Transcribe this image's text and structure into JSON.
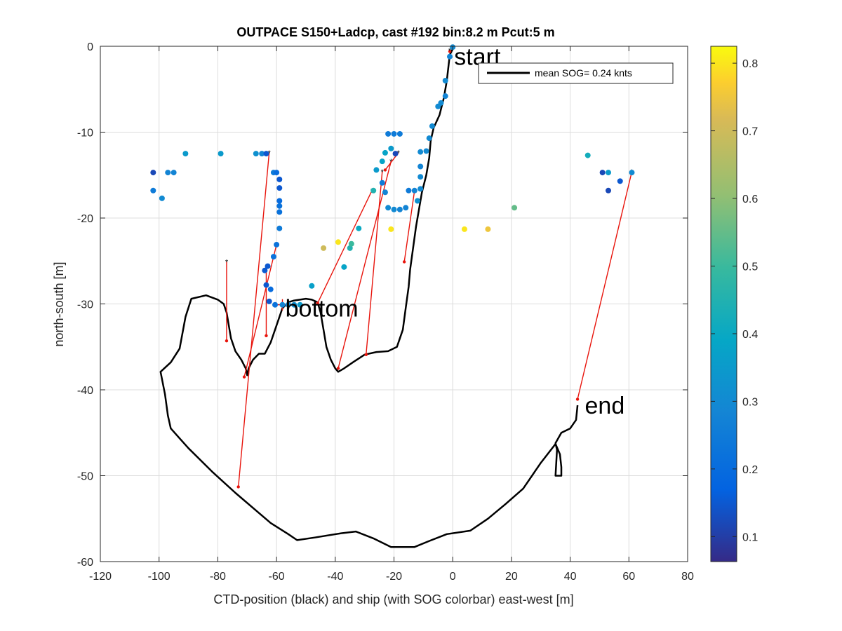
{
  "chart_data": {
    "type": "scatter",
    "title": "OUTPACE S150+Ladcp, cast #192 bin:8.2 m  Pcut:5 m",
    "xlabel": "CTD-position (black) and ship (with SOG colorbar) east-west [m]",
    "ylabel": "north-south [m]",
    "xlim": [
      -120,
      80
    ],
    "ylim": [
      -60,
      0
    ],
    "xticks": [
      "-120",
      "-100",
      "-80",
      "-60",
      "-40",
      "-20",
      "0",
      "20",
      "40",
      "60",
      "80"
    ],
    "yticks": [
      "0",
      "-10",
      "-20",
      "-30",
      "-40",
      "-50",
      "-60"
    ],
    "grid": true,
    "legend": {
      "label": "mean SOG=  0.24 knts",
      "placement": "top-right"
    },
    "colorbar": {
      "range": [
        0.063,
        0.825
      ],
      "ticks": [
        "0.1",
        "0.2",
        "0.3",
        "0.4",
        "0.5",
        "0.6",
        "0.7",
        "0.8"
      ],
      "colormap": "parula"
    },
    "annotations": [
      {
        "text": "start",
        "x": 0.5,
        "y": -1.2
      },
      {
        "text": "bottom",
        "x": -57,
        "y": -30.5
      },
      {
        "text": "end",
        "x": 45,
        "y": -41.8
      }
    ],
    "ctd_track": [
      [
        0,
        -0.3
      ],
      [
        -1,
        -1
      ],
      [
        -1.5,
        -2.5
      ],
      [
        -2,
        -4
      ],
      [
        -3,
        -6
      ],
      [
        -4.5,
        -8
      ],
      [
        -6.5,
        -9.5
      ],
      [
        -7.5,
        -11
      ],
      [
        -8,
        -13
      ],
      [
        -9,
        -15
      ],
      [
        -10.5,
        -17
      ],
      [
        -11.5,
        -19
      ],
      [
        -12.5,
        -21
      ],
      [
        -13.5,
        -23.5
      ],
      [
        -14.5,
        -26
      ],
      [
        -15,
        -28
      ],
      [
        -16,
        -30.5
      ],
      [
        -17,
        -33
      ],
      [
        -19,
        -35
      ],
      [
        -22,
        -35.5
      ],
      [
        -26,
        -35.6
      ],
      [
        -30,
        -35.9
      ],
      [
        -34,
        -36.8
      ],
      [
        -37,
        -37.5
      ],
      [
        -39,
        -37.9
      ],
      [
        -40,
        -37.5
      ],
      [
        -41.5,
        -36.5
      ],
      [
        -43,
        -35
      ],
      [
        -44,
        -33
      ],
      [
        -45,
        -31
      ],
      [
        -46,
        -29.8
      ],
      [
        -48,
        -29.5
      ],
      [
        -50,
        -29.4
      ],
      [
        -52,
        -29.5
      ],
      [
        -54,
        -29.6
      ],
      [
        -56,
        -29.8
      ],
      [
        -58,
        -30.5
      ],
      [
        -59.5,
        -32
      ],
      [
        -62,
        -34.5
      ],
      [
        -64,
        -35.8
      ],
      [
        -66,
        -35.8
      ],
      [
        -68,
        -36.5
      ],
      [
        -69.5,
        -37.5
      ],
      [
        -70,
        -38.3
      ],
      [
        -70.5,
        -37.5
      ],
      [
        -72,
        -36.5
      ],
      [
        -74,
        -35.5
      ],
      [
        -75.5,
        -34
      ],
      [
        -76,
        -33
      ],
      [
        -77,
        -31
      ],
      [
        -78,
        -30
      ],
      [
        -80,
        -29.5
      ],
      [
        -84,
        -29
      ],
      [
        -89,
        -29.4
      ],
      [
        -91,
        -31.5
      ],
      [
        -93,
        -35.2
      ],
      [
        -96,
        -36.8
      ],
      [
        -99.5,
        -37.9
      ],
      [
        -98,
        -40.5
      ],
      [
        -97,
        -43
      ],
      [
        -96,
        -44.5
      ],
      [
        -90,
        -46.8
      ],
      [
        -82,
        -49.5
      ],
      [
        -74,
        -52
      ],
      [
        -62,
        -55.5
      ],
      [
        -56,
        -56.8
      ],
      [
        -53,
        -57.5
      ],
      [
        -47,
        -57.2
      ],
      [
        -38,
        -56.7
      ],
      [
        -33,
        -56.5
      ],
      [
        -27,
        -57.3
      ],
      [
        -21,
        -58.3
      ],
      [
        -13,
        -58.3
      ],
      [
        -8,
        -57.6
      ],
      [
        -2,
        -56.8
      ],
      [
        6,
        -56.4
      ],
      [
        12,
        -55
      ],
      [
        18,
        -53.3
      ],
      [
        24,
        -51.5
      ],
      [
        30,
        -48.5
      ],
      [
        35,
        -46.3
      ],
      [
        36.5,
        -47.5
      ],
      [
        37,
        -49
      ],
      [
        37,
        -50
      ],
      [
        35,
        -50
      ],
      [
        35.5,
        -47
      ],
      [
        35,
        -46.2
      ],
      [
        37,
        -45
      ],
      [
        40,
        -44.5
      ],
      [
        42,
        -43.5
      ],
      [
        42.5,
        -41.8
      ]
    ],
    "ship_points": [
      {
        "x": -102,
        "y": -14.7,
        "c": 0.12
      },
      {
        "x": -102,
        "y": -16.8,
        "c": 0.25
      },
      {
        "x": -99,
        "y": -17.7,
        "c": 0.3
      },
      {
        "x": -97,
        "y": -14.7,
        "c": 0.28
      },
      {
        "x": -95,
        "y": -14.7,
        "c": 0.28
      },
      {
        "x": -91,
        "y": -12.5,
        "c": 0.35
      },
      {
        "x": -79,
        "y": -12.5,
        "c": 0.35
      },
      {
        "x": -67,
        "y": -12.5,
        "c": 0.32
      },
      {
        "x": -65,
        "y": -12.5,
        "c": 0.28
      },
      {
        "x": -63.5,
        "y": -12.5,
        "c": 0.15
      },
      {
        "x": -61,
        "y": -14.7,
        "c": 0.25
      },
      {
        "x": -60,
        "y": -14.7,
        "c": 0.2
      },
      {
        "x": -59,
        "y": -15.5,
        "c": 0.15
      },
      {
        "x": -59,
        "y": -16.5,
        "c": 0.15
      },
      {
        "x": -59,
        "y": -18,
        "c": 0.2
      },
      {
        "x": -59,
        "y": -18.6,
        "c": 0.22
      },
      {
        "x": -59,
        "y": -19.3,
        "c": 0.22
      },
      {
        "x": -59,
        "y": -21.2,
        "c": 0.25
      },
      {
        "x": -60,
        "y": -23.1,
        "c": 0.22
      },
      {
        "x": -61,
        "y": -24.5,
        "c": 0.22
      },
      {
        "x": -63,
        "y": -25.6,
        "c": 0.15
      },
      {
        "x": -64,
        "y": -26.1,
        "c": 0.15
      },
      {
        "x": -63.5,
        "y": -27.8,
        "c": 0.15
      },
      {
        "x": -62,
        "y": -28.3,
        "c": 0.2
      },
      {
        "x": -62.5,
        "y": -29.7,
        "c": 0.15
      },
      {
        "x": -60.5,
        "y": -30.1,
        "c": 0.22
      },
      {
        "x": -58,
        "y": -30.1,
        "c": 0.28
      },
      {
        "x": -56,
        "y": -30.1,
        "c": 0.3
      },
      {
        "x": -54,
        "y": -30.1,
        "c": 0.32
      },
      {
        "x": -52,
        "y": -30.1,
        "c": 0.35
      },
      {
        "x": -48,
        "y": -27.9,
        "c": 0.37
      },
      {
        "x": -44,
        "y": -23.5,
        "c": 0.7
      },
      {
        "x": -39,
        "y": -22.8,
        "c": 0.8
      },
      {
        "x": -35,
        "y": -23.5,
        "c": 0.45
      },
      {
        "x": -34.5,
        "y": -23,
        "c": 0.5
      },
      {
        "x": -37,
        "y": -25.7,
        "c": 0.38
      },
      {
        "x": -32,
        "y": -21.2,
        "c": 0.4
      },
      {
        "x": -27,
        "y": -16.8,
        "c": 0.45
      },
      {
        "x": -26,
        "y": -14.4,
        "c": 0.35
      },
      {
        "x": -24,
        "y": -15.9,
        "c": 0.25
      },
      {
        "x": -23,
        "y": -17,
        "c": 0.28
      },
      {
        "x": -24,
        "y": -13.4,
        "c": 0.38
      },
      {
        "x": -23,
        "y": -12.4,
        "c": 0.38
      },
      {
        "x": -21,
        "y": -11.9,
        "c": 0.35
      },
      {
        "x": -19.5,
        "y": -12.5,
        "c": 0.12
      },
      {
        "x": -22,
        "y": -10.2,
        "c": 0.25
      },
      {
        "x": -20,
        "y": -10.2,
        "c": 0.25
      },
      {
        "x": -18,
        "y": -10.2,
        "c": 0.25
      },
      {
        "x": -22,
        "y": -18.8,
        "c": 0.3
      },
      {
        "x": -20,
        "y": -19,
        "c": 0.3
      },
      {
        "x": -18,
        "y": -19,
        "c": 0.28
      },
      {
        "x": -16,
        "y": -18.8,
        "c": 0.28
      },
      {
        "x": -21,
        "y": -21.3,
        "c": 0.8
      },
      {
        "x": -15,
        "y": -16.8,
        "c": 0.25
      },
      {
        "x": -13,
        "y": -16.8,
        "c": 0.28
      },
      {
        "x": -12,
        "y": -18,
        "c": 0.32
      },
      {
        "x": -11,
        "y": -16.6,
        "c": 0.3
      },
      {
        "x": -11,
        "y": -15.2,
        "c": 0.3
      },
      {
        "x": -11,
        "y": -14,
        "c": 0.28
      },
      {
        "x": -11,
        "y": -12.3,
        "c": 0.3
      },
      {
        "x": -9,
        "y": -12.2,
        "c": 0.3
      },
      {
        "x": -8,
        "y": -10.7,
        "c": 0.3
      },
      {
        "x": -7,
        "y": -9.3,
        "c": 0.3
      },
      {
        "x": -5,
        "y": -7,
        "c": 0.3
      },
      {
        "x": -4,
        "y": -6.6,
        "c": 0.3
      },
      {
        "x": -2.5,
        "y": -5.8,
        "c": 0.28
      },
      {
        "x": -2.5,
        "y": -4,
        "c": 0.3
      },
      {
        "x": -1,
        "y": -1.2,
        "c": 0.28
      },
      {
        "x": 0,
        "y": -0.1,
        "c": 0.3
      },
      {
        "x": 4,
        "y": -21.3,
        "c": 0.8
      },
      {
        "x": 12,
        "y": -21.3,
        "c": 0.75
      },
      {
        "x": 21,
        "y": -18.8,
        "c": 0.55
      },
      {
        "x": 46,
        "y": -12.7,
        "c": 0.42
      },
      {
        "x": 51,
        "y": -14.7,
        "c": 0.12
      },
      {
        "x": 53,
        "y": -14.7,
        "c": 0.35
      },
      {
        "x": 53,
        "y": -16.8,
        "c": 0.12
      },
      {
        "x": 57,
        "y": -15.7,
        "c": 0.15
      },
      {
        "x": 61,
        "y": -14.7,
        "c": 0.3
      }
    ],
    "bins": [
      {
        "ship": [
          -62.5,
          -12.4
        ],
        "ctd": [
          -73,
          -51.3
        ]
      },
      {
        "ship": [
          -77,
          -25.1
        ],
        "ctd": [
          -77,
          -34.3
        ]
      },
      {
        "ship": [
          -60,
          -23.1
        ],
        "ctd": [
          -71,
          -38.5
        ]
      },
      {
        "ship": [
          -27.5,
          -16.8
        ],
        "ctd": [
          -46,
          -29.9
        ]
      },
      {
        "ship": [
          -21,
          -13.4
        ],
        "ctd": [
          -39,
          -37.5
        ]
      },
      {
        "ship": [
          -24,
          -14.6
        ],
        "ctd": [
          -29.5,
          -35.9
        ]
      },
      {
        "ship": [
          -18.5,
          -12.4
        ],
        "ctd": [
          -23,
          -14.4
        ]
      },
      {
        "ship": [
          -13,
          -16.8
        ],
        "ctd": [
          -16.5,
          -25.1
        ]
      },
      {
        "ship": [
          -63.5,
          -25.8
        ],
        "ctd": [
          -63.5,
          -33.7
        ]
      },
      {
        "ship": [
          61,
          -14.6
        ],
        "ctd": [
          42.5,
          -41.1
        ]
      },
      {
        "ship": [
          -1,
          -0.5
        ],
        "ctd": [
          -1,
          -0.6
        ]
      }
    ]
  }
}
